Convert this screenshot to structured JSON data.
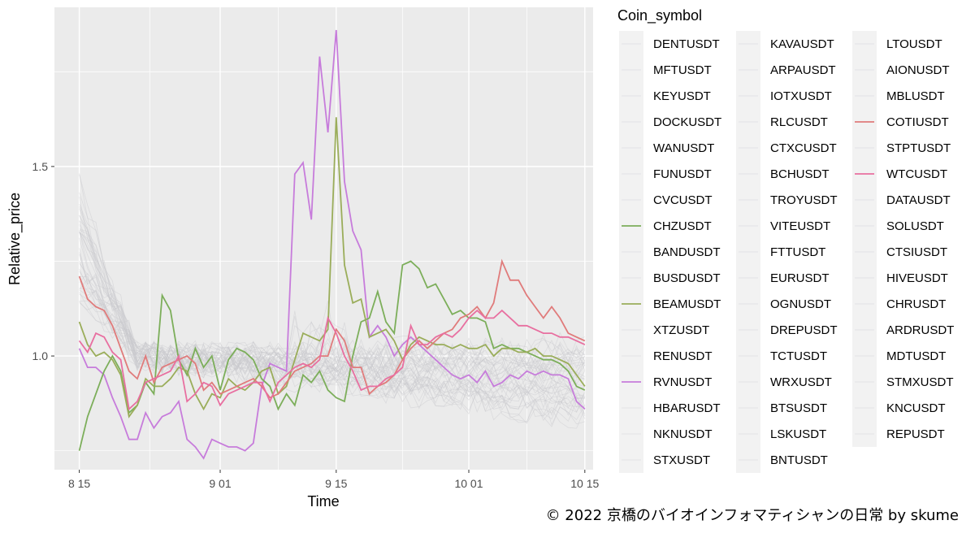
{
  "caption": "© 2022 京橋のバイオインフォマティシャンの日常 by skume",
  "chart_data": {
    "type": "line",
    "xlabel": "Time",
    "ylabel": "Relative_price",
    "x_ticks": [
      "8 15",
      "9 01",
      "9 15",
      "10 01",
      "10 15"
    ],
    "x_tick_days": [
      0,
      17,
      31,
      47,
      61
    ],
    "xlim_days": [
      -3,
      62
    ],
    "y_ticks": [
      1.0,
      1.5
    ],
    "ylim": [
      0.7,
      1.92
    ],
    "grid": true,
    "legend": {
      "title": "Coin_symbol",
      "placement": "right",
      "entries": [
        {
          "label": "DENTUSDT"
        },
        {
          "label": "MFTUSDT"
        },
        {
          "label": "KEYUSDT"
        },
        {
          "label": "DOCKUSDT"
        },
        {
          "label": "WANUSDT"
        },
        {
          "label": "FUNUSDT"
        },
        {
          "label": "CVCUSDT"
        },
        {
          "label": "CHZUSDT",
          "color": "#7cae5a"
        },
        {
          "label": "BANDUSDT"
        },
        {
          "label": "BUSDUSDT"
        },
        {
          "label": "BEAMUSDT",
          "color": "#9aad5a"
        },
        {
          "label": "XTZUSDT"
        },
        {
          "label": "RENUSDT"
        },
        {
          "label": "RVNUSDT",
          "color": "#c77cdb"
        },
        {
          "label": "HBARUSDT"
        },
        {
          "label": "NKNUSDT"
        },
        {
          "label": "STXUSDT"
        },
        {
          "label": "KAVAUSDT"
        },
        {
          "label": "ARPAUSDT"
        },
        {
          "label": "IOTXUSDT"
        },
        {
          "label": "RLCUSDT"
        },
        {
          "label": "CTXCUSDT"
        },
        {
          "label": "BCHUSDT"
        },
        {
          "label": "TROYUSDT"
        },
        {
          "label": "VITEUSDT"
        },
        {
          "label": "FTTUSDT"
        },
        {
          "label": "EURUSDT"
        },
        {
          "label": "OGNUSDT"
        },
        {
          "label": "DREPUSDT"
        },
        {
          "label": "TCTUSDT"
        },
        {
          "label": "WRXUSDT"
        },
        {
          "label": "BTSUSDT"
        },
        {
          "label": "LSKUSDT"
        },
        {
          "label": "BNTUSDT"
        },
        {
          "label": "LTOUSDT"
        },
        {
          "label": "AIONUSDT"
        },
        {
          "label": "MBLUSDT"
        },
        {
          "label": "COTIUSDT",
          "color": "#e07b7b"
        },
        {
          "label": "STPTUSDT"
        },
        {
          "label": "WTCUSDT",
          "color": "#e86fa0"
        },
        {
          "label": "DATAUSDT"
        },
        {
          "label": "SOLUSDT"
        },
        {
          "label": "CTSIUSDT"
        },
        {
          "label": "HIVEUSDT"
        },
        {
          "label": "CHRUSDT"
        },
        {
          "label": "ARDRUSDT"
        },
        {
          "label": "MDTUSDT"
        },
        {
          "label": "STMXUSDT"
        },
        {
          "label": "KNCUSDT"
        },
        {
          "label": "REPUSDT"
        }
      ]
    },
    "background_series_color": "#c8c8cc",
    "highlight_series": [
      {
        "name": "RVNUSDT",
        "color": "#c77cdb",
        "x": [
          0,
          1,
          2,
          3,
          4,
          5,
          6,
          7,
          8,
          9,
          10,
          11,
          12,
          13,
          14,
          15,
          16,
          17,
          18,
          19,
          20,
          21,
          22,
          23,
          24,
          25,
          26,
          27,
          28,
          29,
          30,
          31,
          32,
          33,
          34,
          35,
          36,
          37,
          38,
          39,
          40,
          41,
          42,
          43,
          44,
          45,
          46,
          47,
          48,
          49,
          50,
          51,
          52,
          53,
          54,
          55,
          56,
          57,
          58,
          59,
          60,
          61
        ],
        "y": [
          1.02,
          0.97,
          0.97,
          0.95,
          0.89,
          0.84,
          0.78,
          0.78,
          0.85,
          0.81,
          0.84,
          0.85,
          0.88,
          0.78,
          0.76,
          0.73,
          0.78,
          0.77,
          0.76,
          0.76,
          0.75,
          0.77,
          0.92,
          0.98,
          0.97,
          0.96,
          1.48,
          1.51,
          1.36,
          1.79,
          1.59,
          1.86,
          1.46,
          1.33,
          1.28,
          1.05,
          1.08,
          1.05,
          1.0,
          1.03,
          1.05,
          1.03,
          1.01,
          0.99,
          0.97,
          0.95,
          0.94,
          0.95,
          0.93,
          0.96,
          0.92,
          0.93,
          0.95,
          0.94,
          0.96,
          0.95,
          0.96,
          0.95,
          0.95,
          0.94,
          0.88,
          0.86
        ]
      },
      {
        "name": "CHZUSDT",
        "color": "#7cae5a",
        "x": [
          0,
          1,
          2,
          3,
          4,
          5,
          6,
          7,
          8,
          9,
          10,
          11,
          12,
          13,
          14,
          15,
          16,
          17,
          18,
          19,
          20,
          21,
          22,
          23,
          24,
          25,
          26,
          27,
          28,
          29,
          30,
          31,
          32,
          33,
          34,
          35,
          36,
          37,
          38,
          39,
          40,
          41,
          42,
          43,
          44,
          45,
          46,
          47,
          48,
          49,
          50,
          51,
          52,
          53,
          54,
          55,
          56,
          57,
          58,
          59,
          60,
          61
        ],
        "y": [
          0.75,
          0.84,
          0.9,
          0.96,
          1.0,
          0.96,
          0.85,
          0.87,
          0.93,
          0.9,
          1.16,
          1.12,
          0.99,
          0.95,
          1.02,
          0.97,
          1.0,
          0.91,
          0.99,
          1.02,
          1.01,
          0.99,
          0.94,
          0.92,
          0.86,
          0.9,
          0.87,
          0.95,
          0.93,
          0.96,
          0.91,
          0.89,
          0.88,
          1.0,
          1.09,
          1.1,
          1.17,
          1.09,
          1.06,
          1.24,
          1.25,
          1.23,
          1.18,
          1.19,
          1.15,
          1.11,
          1.12,
          1.1,
          1.1,
          1.09,
          1.02,
          1.03,
          1.02,
          1.02,
          1.01,
          1.0,
          0.99,
          0.99,
          0.98,
          0.96,
          0.92,
          0.91
        ]
      },
      {
        "name": "BEAMUSDT",
        "color": "#9aad5a",
        "x": [
          0,
          1,
          2,
          3,
          4,
          5,
          6,
          7,
          8,
          9,
          10,
          11,
          12,
          13,
          14,
          15,
          16,
          17,
          18,
          19,
          20,
          21,
          22,
          23,
          24,
          25,
          26,
          27,
          28,
          29,
          30,
          31,
          32,
          33,
          34,
          35,
          36,
          37,
          38,
          39,
          40,
          41,
          42,
          43,
          44,
          45,
          46,
          47,
          48,
          49,
          50,
          51,
          52,
          53,
          54,
          55,
          56,
          57,
          58,
          59,
          60,
          61
        ],
        "y": [
          1.09,
          1.03,
          1.0,
          1.01,
          0.99,
          0.95,
          0.84,
          0.87,
          0.94,
          0.92,
          0.92,
          0.94,
          0.97,
          0.96,
          0.9,
          0.86,
          0.9,
          0.89,
          0.94,
          0.92,
          0.91,
          0.93,
          0.96,
          0.97,
          0.9,
          0.92,
          0.99,
          1.06,
          1.05,
          1.04,
          1.07,
          1.63,
          1.24,
          1.14,
          1.15,
          1.05,
          1.06,
          1.07,
          1.04,
          0.99,
          1.03,
          1.05,
          1.04,
          1.03,
          1.03,
          1.02,
          1.03,
          1.02,
          1.02,
          1.03,
          1.0,
          1.02,
          1.02,
          1.01,
          1.01,
          1.02,
          1.0,
          1.0,
          0.99,
          0.98,
          0.95,
          0.92
        ]
      },
      {
        "name": "COTIUSDT",
        "color": "#e07b7b",
        "x": [
          0,
          1,
          2,
          3,
          4,
          5,
          6,
          7,
          8,
          9,
          10,
          11,
          12,
          13,
          14,
          15,
          16,
          17,
          18,
          19,
          20,
          21,
          22,
          23,
          24,
          25,
          26,
          27,
          28,
          29,
          30,
          31,
          32,
          33,
          34,
          35,
          36,
          37,
          38,
          39,
          40,
          41,
          42,
          43,
          44,
          45,
          46,
          47,
          48,
          49,
          50,
          51,
          52,
          53,
          54,
          55,
          56,
          57,
          58,
          59,
          60,
          61
        ],
        "y": [
          1.21,
          1.15,
          1.13,
          1.12,
          1.08,
          1.02,
          0.96,
          0.94,
          1.0,
          0.93,
          0.97,
          0.98,
          0.99,
          1.0,
          0.98,
          0.91,
          0.93,
          0.9,
          0.91,
          0.92,
          0.93,
          0.94,
          0.92,
          0.89,
          0.9,
          0.93,
          0.96,
          0.97,
          0.98,
          1.0,
          1.0,
          1.07,
          1.04,
          0.97,
          0.97,
          0.9,
          0.92,
          0.93,
          0.95,
          0.99,
          1.02,
          1.04,
          1.02,
          1.04,
          1.06,
          1.07,
          1.1,
          1.11,
          1.13,
          1.1,
          1.14,
          1.25,
          1.2,
          1.2,
          1.16,
          1.13,
          1.1,
          1.13,
          1.1,
          1.06,
          1.05,
          1.04
        ]
      },
      {
        "name": "WTCUSDT",
        "color": "#e86fa0",
        "x": [
          0,
          1,
          2,
          3,
          4,
          5,
          6,
          7,
          8,
          9,
          10,
          11,
          12,
          13,
          14,
          15,
          16,
          17,
          18,
          19,
          20,
          21,
          22,
          23,
          24,
          25,
          26,
          27,
          28,
          29,
          30,
          31,
          32,
          33,
          34,
          35,
          36,
          37,
          38,
          39,
          40,
          41,
          42,
          43,
          44,
          45,
          46,
          47,
          48,
          49,
          50,
          51,
          52,
          53,
          54,
          55,
          56,
          57,
          58,
          59,
          60,
          61
        ],
        "y": [
          1.04,
          1.01,
          1.06,
          1.05,
          1.01,
          0.99,
          0.86,
          0.88,
          0.93,
          0.94,
          0.95,
          0.96,
          1.0,
          0.88,
          0.9,
          0.93,
          0.92,
          0.87,
          0.9,
          0.91,
          0.92,
          0.93,
          0.93,
          0.88,
          0.93,
          0.95,
          0.97,
          0.98,
          0.97,
          0.99,
          1.1,
          1.06,
          1.0,
          0.96,
          0.91,
          0.92,
          0.92,
          0.94,
          0.95,
          0.97,
          1.08,
          1.03,
          1.03,
          1.05,
          1.06,
          1.05,
          1.07,
          1.1,
          1.12,
          1.1,
          1.1,
          1.12,
          1.1,
          1.08,
          1.08,
          1.07,
          1.06,
          1.06,
          1.05,
          1.05,
          1.04,
          1.03
        ]
      }
    ]
  }
}
